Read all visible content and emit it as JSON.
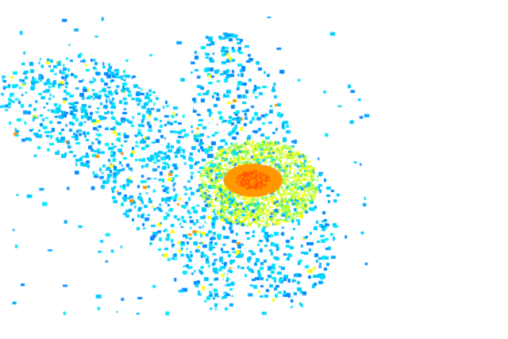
{
  "image": {
    "background": "#ffffff",
    "palette": {
      "light_cyan": "#00e8ff",
      "cyan": "#00ccff",
      "sky_blue": "#00aaff",
      "blue": "#0088ff",
      "green": "#80ff40",
      "yellow": "#ffff00",
      "orange": "#ff9900",
      "red_orange": "#ff5500"
    }
  }
}
